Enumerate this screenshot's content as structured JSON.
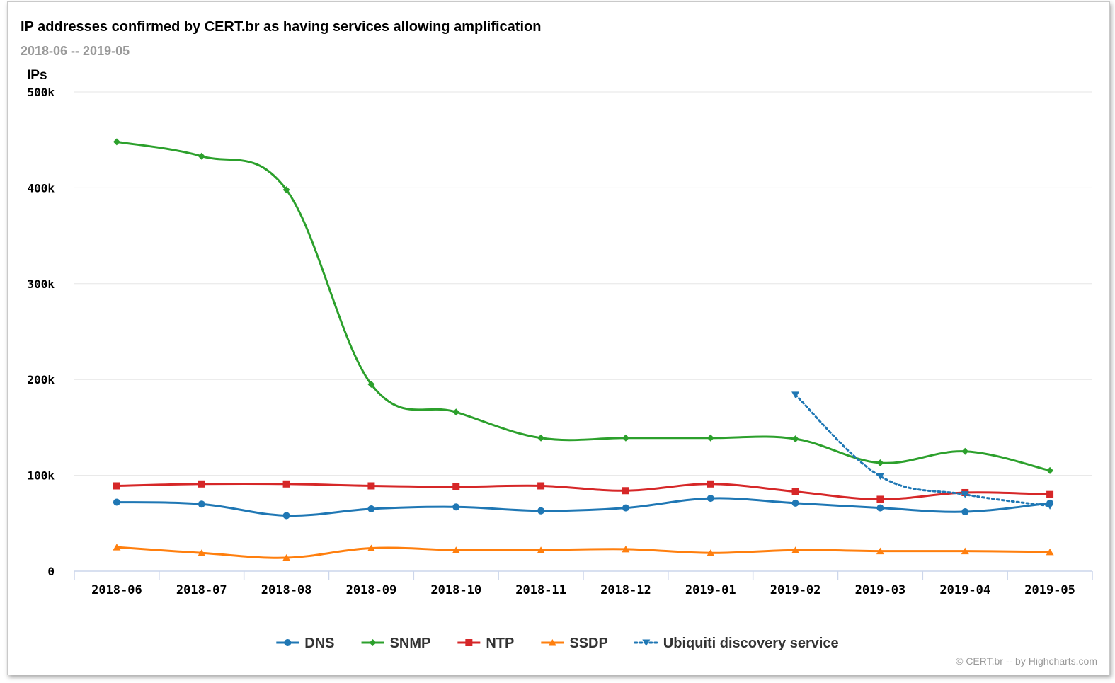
{
  "chart_data": {
    "type": "line",
    "title": "IP addresses confirmed by CERT.br as having services allowing amplification",
    "subtitle": "2018-06 -- 2019-05",
    "ylabel": "IPs",
    "xlabel": "",
    "ylim": [
      0,
      500000
    ],
    "yticks": [
      0,
      100000,
      200000,
      300000,
      400000,
      500000
    ],
    "ytick_labels": [
      "0",
      "100k",
      "200k",
      "300k",
      "400k",
      "500k"
    ],
    "grid": true,
    "legend_position": "bottom-center",
    "categories": [
      "2018-06",
      "2018-07",
      "2018-08",
      "2018-09",
      "2018-10",
      "2018-11",
      "2018-12",
      "2019-01",
      "2019-02",
      "2019-03",
      "2019-04",
      "2019-05"
    ],
    "series": [
      {
        "name": "DNS",
        "color": "#1f77b4",
        "marker": "circle",
        "dash": false,
        "values": [
          72000,
          70000,
          58000,
          65000,
          67000,
          63000,
          66000,
          76000,
          71000,
          66000,
          62000,
          71000
        ]
      },
      {
        "name": "SNMP",
        "color": "#2ca02c",
        "marker": "diamond",
        "dash": false,
        "values": [
          448000,
          433000,
          398000,
          195000,
          166000,
          139000,
          139000,
          139000,
          138000,
          113000,
          125000,
          105000
        ]
      },
      {
        "name": "NTP",
        "color": "#d62728",
        "marker": "square",
        "dash": false,
        "values": [
          89000,
          91000,
          91000,
          89000,
          88000,
          89000,
          84000,
          91000,
          83000,
          75000,
          82000,
          80000
        ]
      },
      {
        "name": "SSDP",
        "color": "#ff7f0e",
        "marker": "triangle",
        "dash": false,
        "values": [
          25000,
          19000,
          14000,
          24000,
          22000,
          22000,
          23000,
          19000,
          22000,
          21000,
          21000,
          20000
        ]
      },
      {
        "name": "Ubiquiti discovery service",
        "color": "#1f77b4",
        "marker": "triangle-down",
        "dash": true,
        "values": [
          null,
          null,
          null,
          null,
          null,
          null,
          null,
          null,
          184000,
          99000,
          80000,
          68000
        ]
      }
    ],
    "credits": "© CERT.br -- by Highcharts.com"
  }
}
